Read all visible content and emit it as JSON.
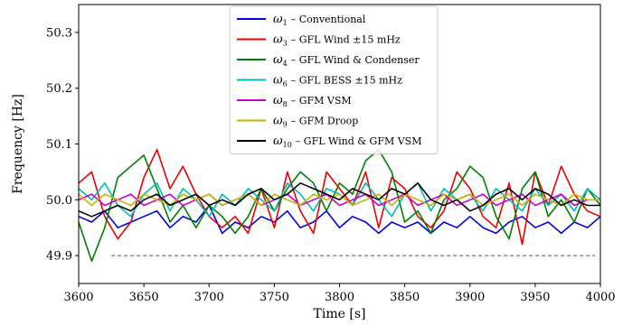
{
  "chart_data": {
    "type": "line",
    "xlabel": "Time [s]",
    "ylabel": "Frequency  [Hz]",
    "xlim": [
      3600,
      4000
    ],
    "ylim": [
      49.85,
      50.35
    ],
    "xticks": [
      3600,
      3650,
      3700,
      3750,
      3800,
      3850,
      3900,
      3950,
      4000
    ],
    "yticks": [
      49.9,
      50.0,
      50.1,
      50.2,
      50.3
    ],
    "xtick_labels": [
      "3600",
      "3650",
      "3700",
      "3750",
      "3800",
      "3850",
      "3900",
      "3950",
      "4000"
    ],
    "ytick_labels": [
      "49.9",
      "50.0",
      "50.1",
      "50.2",
      "50.3"
    ],
    "grid": false,
    "legend_position": "top-center",
    "reference_line": {
      "y": 49.9,
      "style": "dashed",
      "color": "#555555"
    },
    "series": [
      {
        "symbol": "ω",
        "sub": "1",
        "label": "– Conventional",
        "color": "#0000dd",
        "x": [
          3600,
          3610,
          3620,
          3630,
          3640,
          3650,
          3660,
          3670,
          3680,
          3690,
          3700,
          3710,
          3720,
          3730,
          3740,
          3750,
          3760,
          3770,
          3780,
          3790,
          3800,
          3810,
          3820,
          3830,
          3840,
          3850,
          3860,
          3870,
          3880,
          3890,
          3900,
          3910,
          3920,
          3930,
          3940,
          3950,
          3960,
          3970,
          3980,
          3990,
          4000
        ],
        "y": [
          49.97,
          49.96,
          49.98,
          49.95,
          49.96,
          49.97,
          49.98,
          49.95,
          49.97,
          49.96,
          49.99,
          49.94,
          49.96,
          49.95,
          49.97,
          49.96,
          49.98,
          49.95,
          49.96,
          49.98,
          49.95,
          49.97,
          49.96,
          49.94,
          49.96,
          49.95,
          49.96,
          49.94,
          49.96,
          49.95,
          49.97,
          49.95,
          49.94,
          49.96,
          49.97,
          49.95,
          49.96,
          49.94,
          49.96,
          49.95,
          49.97
        ]
      },
      {
        "symbol": "ω",
        "sub": "3",
        "label": "– GFL Wind ±15 mHz",
        "color": "#ee0000",
        "x": [
          3600,
          3610,
          3620,
          3630,
          3640,
          3650,
          3660,
          3670,
          3680,
          3690,
          3700,
          3710,
          3720,
          3730,
          3740,
          3750,
          3760,
          3770,
          3780,
          3790,
          3800,
          3810,
          3820,
          3830,
          3840,
          3850,
          3860,
          3870,
          3880,
          3890,
          3900,
          3910,
          3920,
          3930,
          3940,
          3950,
          3960,
          3970,
          3980,
          3990,
          4000
        ],
        "y": [
          50.03,
          50.05,
          49.97,
          49.93,
          49.96,
          50.04,
          50.09,
          50.02,
          50.06,
          50.01,
          49.97,
          49.95,
          49.97,
          49.94,
          50.02,
          49.95,
          50.05,
          49.98,
          49.94,
          50.05,
          50.02,
          49.99,
          50.05,
          49.95,
          50.04,
          50.02,
          49.97,
          49.95,
          49.98,
          50.05,
          50.02,
          49.97,
          49.95,
          50.03,
          49.92,
          50.05,
          49.99,
          50.06,
          50.01,
          49.98,
          49.97
        ]
      },
      {
        "symbol": "ω",
        "sub": "4",
        "label": "– GFL Wind & Condenser",
        "color": "#008000",
        "x": [
          3600,
          3610,
          3620,
          3630,
          3640,
          3650,
          3660,
          3670,
          3680,
          3690,
          3700,
          3710,
          3720,
          3730,
          3740,
          3750,
          3760,
          3770,
          3780,
          3790,
          3800,
          3810,
          3820,
          3830,
          3840,
          3850,
          3860,
          3870,
          3880,
          3890,
          3900,
          3910,
          3920,
          3930,
          3940,
          3950,
          3960,
          3970,
          3980,
          3990,
          4000
        ],
        "y": [
          49.96,
          49.89,
          49.95,
          50.04,
          50.06,
          50.08,
          50.02,
          49.96,
          49.99,
          49.95,
          49.99,
          49.97,
          49.94,
          49.97,
          50.02,
          49.98,
          50.02,
          50.05,
          50.03,
          49.98,
          50.03,
          50.01,
          50.07,
          50.09,
          50.05,
          49.96,
          49.98,
          49.94,
          50.0,
          50.02,
          50.06,
          50.04,
          49.97,
          49.93,
          50.02,
          50.05,
          49.97,
          50.0,
          49.96,
          50.02,
          49.99
        ]
      },
      {
        "symbol": "ω",
        "sub": "6",
        "label": "– GFL BESS ±15 mHz",
        "color": "#00bbbb",
        "x": [
          3600,
          3610,
          3620,
          3630,
          3640,
          3650,
          3660,
          3670,
          3680,
          3690,
          3700,
          3710,
          3720,
          3730,
          3740,
          3750,
          3760,
          3770,
          3780,
          3790,
          3800,
          3810,
          3820,
          3830,
          3840,
          3850,
          3860,
          3870,
          3880,
          3890,
          3900,
          3910,
          3920,
          3930,
          3940,
          3950,
          3960,
          3970,
          3980,
          3990,
          4000
        ],
        "y": [
          50.02,
          50.0,
          50.03,
          49.99,
          49.97,
          50.01,
          50.03,
          49.98,
          50.02,
          50.0,
          49.97,
          50.01,
          49.99,
          50.02,
          50.0,
          49.98,
          50.03,
          50.01,
          49.98,
          50.02,
          50.01,
          49.99,
          50.03,
          50.0,
          49.97,
          50.01,
          50.03,
          49.98,
          50.02,
          50.0,
          50.01,
          49.98,
          50.02,
          50.0,
          49.98,
          50.02,
          49.99,
          50.01,
          49.98,
          50.02,
          50.0
        ]
      },
      {
        "symbol": "ω",
        "sub": "8",
        "label": "– GFM VSM",
        "color": "#cc00cc",
        "x": [
          3600,
          3610,
          3620,
          3630,
          3640,
          3650,
          3660,
          3670,
          3680,
          3690,
          3700,
          3710,
          3720,
          3730,
          3740,
          3750,
          3760,
          3770,
          3780,
          3790,
          3800,
          3810,
          3820,
          3830,
          3840,
          3850,
          3860,
          3870,
          3880,
          3890,
          3900,
          3910,
          3920,
          3930,
          3940,
          3950,
          3960,
          3970,
          3980,
          3990,
          4000
        ],
        "y": [
          50.0,
          50.01,
          49.99,
          50.0,
          50.01,
          49.99,
          50.0,
          50.01,
          49.99,
          50.0,
          50.01,
          49.99,
          50.0,
          50.01,
          49.99,
          50.0,
          50.01,
          49.99,
          50.0,
          50.01,
          49.99,
          50.0,
          50.01,
          49.99,
          50.0,
          50.01,
          49.99,
          50.0,
          50.01,
          49.99,
          50.0,
          50.01,
          49.99,
          50.0,
          50.01,
          49.99,
          50.0,
          50.01,
          49.99,
          50.0,
          50.0
        ]
      },
      {
        "symbol": "ω",
        "sub": "9",
        "label": "– GFM Droop",
        "color": "#c8b400",
        "x": [
          3600,
          3610,
          3620,
          3630,
          3640,
          3650,
          3660,
          3670,
          3680,
          3690,
          3700,
          3710,
          3720,
          3730,
          3740,
          3750,
          3760,
          3770,
          3780,
          3790,
          3800,
          3810,
          3820,
          3830,
          3840,
          3850,
          3860,
          3870,
          3880,
          3890,
          3900,
          3910,
          3920,
          3930,
          3940,
          3950,
          3960,
          3970,
          3980,
          3990,
          4000
        ],
        "y": [
          50.01,
          49.99,
          50.01,
          50.0,
          49.99,
          50.01,
          50.0,
          49.99,
          50.01,
          50.0,
          50.01,
          49.99,
          50.0,
          50.01,
          49.99,
          50.01,
          50.0,
          49.99,
          50.01,
          50.0,
          50.01,
          49.99,
          50.0,
          50.01,
          49.99,
          50.01,
          50.0,
          49.99,
          50.01,
          50.0,
          50.01,
          49.99,
          50.0,
          50.01,
          49.99,
          50.01,
          50.0,
          49.99,
          50.01,
          50.0,
          50.0
        ]
      },
      {
        "symbol": "ω",
        "sub": "10",
        "label": "– GFL Wind & GFM VSM",
        "color": "#000000",
        "x": [
          3600,
          3610,
          3620,
          3630,
          3640,
          3650,
          3660,
          3670,
          3680,
          3690,
          3700,
          3710,
          3720,
          3730,
          3740,
          3750,
          3760,
          3770,
          3780,
          3790,
          3800,
          3810,
          3820,
          3830,
          3840,
          3850,
          3860,
          3870,
          3880,
          3890,
          3900,
          3910,
          3920,
          3930,
          3940,
          3950,
          3960,
          3970,
          3980,
          3990,
          4000
        ],
        "y": [
          49.98,
          49.97,
          49.98,
          49.99,
          49.98,
          50.0,
          50.01,
          49.99,
          50.0,
          50.01,
          49.99,
          50.0,
          49.99,
          50.01,
          50.02,
          50.0,
          50.01,
          50.03,
          50.02,
          50.01,
          50.0,
          50.02,
          50.01,
          50.0,
          50.02,
          50.01,
          50.03,
          50.0,
          49.99,
          50.0,
          49.98,
          49.99,
          50.01,
          50.02,
          50.0,
          50.02,
          50.01,
          49.99,
          50.0,
          49.99,
          49.99
        ]
      }
    ]
  }
}
